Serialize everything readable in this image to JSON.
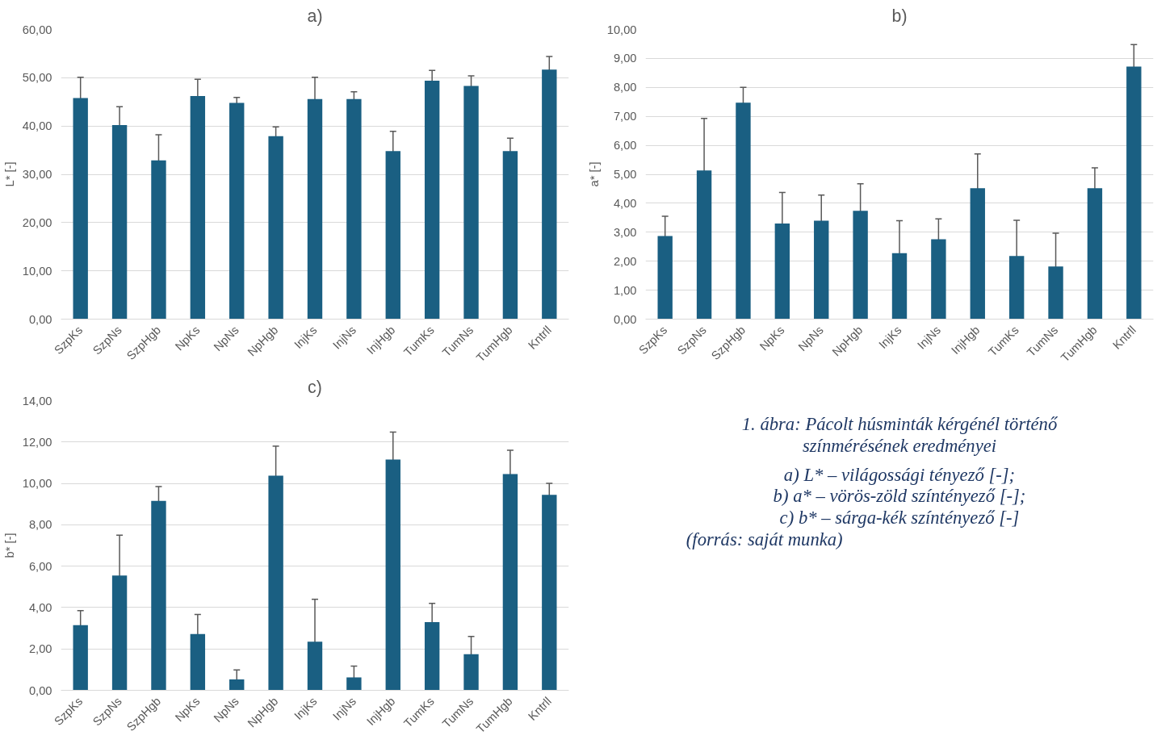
{
  "chart_data": [
    {
      "type": "bar",
      "title": "a)",
      "ylabel": "L* [-]",
      "categories": [
        "SzpKs",
        "SzpNs",
        "SzpHgb",
        "NpKs",
        "NpNs",
        "NpHgb",
        "InjKs",
        "InjNs",
        "InjHgb",
        "TumKs",
        "TumNs",
        "TumHgb",
        "Kntrll"
      ],
      "color": "#1a5f82",
      "grid": "y",
      "values": [
        45.8,
        40.2,
        32.9,
        46.2,
        44.8,
        37.9,
        45.6,
        45.6,
        34.8,
        49.4,
        48.3,
        34.8,
        51.7
      ],
      "errors": [
        4.3,
        3.8,
        5.3,
        3.5,
        1.1,
        1.9,
        4.5,
        1.5,
        4.1,
        2.1,
        2.1,
        2.7,
        2.7
      ],
      "ylim": [
        0,
        60
      ],
      "yticks": [
        {
          "value": 0,
          "label": "0,00"
        },
        {
          "value": 10,
          "label": "10,00"
        },
        {
          "value": 20,
          "label": "20,00"
        },
        {
          "value": 30,
          "label": "30,00"
        },
        {
          "value": 40,
          "label": "40,00"
        },
        {
          "value": 50,
          "label": "50,00"
        },
        {
          "value": 60,
          "label": "60,00"
        }
      ]
    },
    {
      "type": "bar",
      "title": "b)",
      "ylabel": "a* [-]",
      "categories": [
        "SzpKs",
        "SzpNs",
        "SzpHgb",
        "NpKs",
        "NpNs",
        "NpHgb",
        "InjKs",
        "InjNs",
        "InjHgb",
        "TumKs",
        "TumNs",
        "TumHgb",
        "Kntrll"
      ],
      "color": "#1a5f82",
      "grid": "y",
      "values": [
        2.87,
        5.13,
        7.47,
        3.3,
        3.4,
        3.74,
        2.28,
        2.76,
        4.52,
        2.18,
        1.82,
        4.52,
        8.72
      ],
      "errors": [
        0.68,
        1.8,
        0.53,
        1.07,
        0.88,
        0.93,
        1.12,
        0.7,
        1.18,
        1.23,
        1.15,
        0.7,
        0.76
      ],
      "ylim": [
        0,
        10
      ],
      "yticks": [
        {
          "value": 0,
          "label": "0,00"
        },
        {
          "value": 1,
          "label": "1,00"
        },
        {
          "value": 2,
          "label": "2,00"
        },
        {
          "value": 3,
          "label": "3,00"
        },
        {
          "value": 4,
          "label": "4,00"
        },
        {
          "value": 5,
          "label": "5,00"
        },
        {
          "value": 6,
          "label": "6,00"
        },
        {
          "value": 7,
          "label": "7,00"
        },
        {
          "value": 8,
          "label": "8,00"
        },
        {
          "value": 9,
          "label": "9,00"
        },
        {
          "value": 10,
          "label": "10,00"
        }
      ]
    },
    {
      "type": "bar",
      "title": "c)",
      "ylabel": "b* [-]",
      "categories": [
        "SzpKs",
        "SzpNs",
        "SzpHgb",
        "NpKs",
        "NpNs",
        "NpHgb",
        "InjKs",
        "InjNs",
        "InjHgb",
        "TumKs",
        "TumNs",
        "TumHgb",
        "Kntrll"
      ],
      "color": "#1a5f82",
      "grid": "y",
      "values": [
        3.15,
        5.55,
        9.15,
        2.72,
        0.53,
        10.37,
        2.35,
        0.62,
        11.15,
        3.3,
        1.75,
        10.45,
        9.45
      ],
      "errors": [
        0.7,
        1.95,
        0.7,
        0.95,
        0.45,
        1.43,
        2.05,
        0.55,
        1.33,
        0.9,
        0.85,
        1.15,
        0.55
      ],
      "ylim": [
        0,
        14
      ],
      "yticks": [
        {
          "value": 0,
          "label": "0,00"
        },
        {
          "value": 2,
          "label": "2,00"
        },
        {
          "value": 4,
          "label": "4,00"
        },
        {
          "value": 6,
          "label": "6,00"
        },
        {
          "value": 8,
          "label": "8,00"
        },
        {
          "value": 10,
          "label": "10,00"
        },
        {
          "value": 12,
          "label": "12,00"
        },
        {
          "value": 14,
          "label": "14,00"
        }
      ]
    },
    {
      "type": "other",
      "annotations": [
        "1. ábra: Pácolt húsminták kérgénél történő",
        "színmérésének eredményei",
        "a) L* – világossági tényező [-];",
        "b) a* – vörös-zöld színtényező [-];",
        "c) b* – sárga-kék színtényező [-]",
        "(forrás: saját munka)"
      ]
    }
  ]
}
